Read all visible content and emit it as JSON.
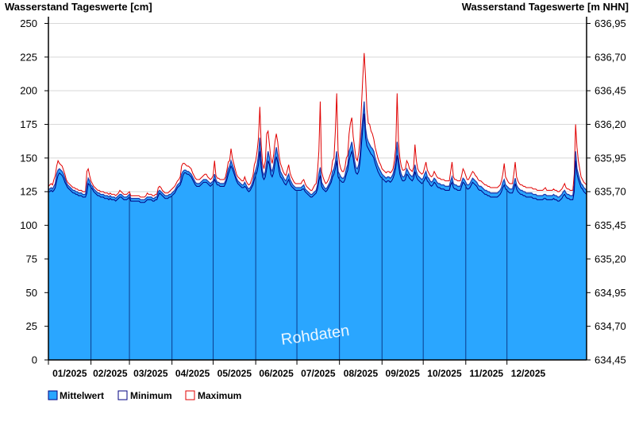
{
  "chart_data": {
    "type": "area",
    "title_left": "Wasserstand Tageswerte [cm]",
    "title_right": "Wasserstand Tageswerte [m NHN]",
    "watermark": "Rohdaten",
    "y_left": {
      "ylim": [
        0,
        255
      ],
      "ticks": [
        0,
        25,
        50,
        75,
        100,
        125,
        150,
        175,
        200,
        225,
        250
      ]
    },
    "y_right": {
      "ylim": [
        634.45,
        637.0
      ],
      "ticks": [
        "634,45",
        "634,70",
        "634,95",
        "635,20",
        "635,45",
        "635,70",
        "635,95",
        "636,20",
        "636,45",
        "636,70",
        "636,95"
      ]
    },
    "months": [
      "01/2025",
      "02/2025",
      "03/2025",
      "04/2025",
      "05/2025",
      "06/2025",
      "07/2025",
      "08/2025",
      "09/2025",
      "10/2025",
      "11/2025",
      "12/2025"
    ],
    "grid": true,
    "legend_position": "bottom-left",
    "series": [
      {
        "name": "Mittelwert",
        "color": "#2aa6ff",
        "values": [
          127,
          127,
          128,
          127,
          129,
          131,
          138,
          141,
          142,
          141,
          140,
          138,
          135,
          132,
          130,
          129,
          128,
          127,
          126,
          126,
          125,
          125,
          124,
          124,
          124,
          123,
          123,
          123,
          130,
          135,
          133,
          130,
          129,
          127,
          126,
          125,
          124,
          124,
          123,
          123,
          123,
          122,
          122,
          122,
          121,
          122,
          121,
          121,
          121,
          120,
          121,
          122,
          123,
          123,
          122,
          121,
          121,
          121,
          122,
          123,
          120,
          120,
          120,
          120,
          120,
          120,
          120,
          119,
          119,
          119,
          119,
          120,
          121,
          121,
          121,
          121,
          120,
          120,
          121,
          121,
          125,
          126,
          125,
          124,
          123,
          122,
          122,
          122,
          123,
          123,
          124,
          125,
          126,
          128,
          130,
          131,
          132,
          138,
          140,
          141,
          141,
          140,
          140,
          139,
          138,
          136,
          134,
          132,
          131,
          131,
          131,
          132,
          133,
          134,
          134,
          134,
          133,
          132,
          131,
          132,
          133,
          138,
          134,
          132,
          132,
          131,
          131,
          131,
          131,
          133,
          137,
          142,
          144,
          148,
          145,
          142,
          138,
          135,
          133,
          132,
          131,
          130,
          130,
          132,
          130,
          128,
          127,
          128,
          130,
          133,
          138,
          141,
          145,
          152,
          165,
          148,
          140,
          137,
          140,
          148,
          155,
          150,
          142,
          140,
          144,
          152,
          158,
          152,
          145,
          140,
          138,
          136,
          134,
          133,
          136,
          138,
          134,
          132,
          130,
          129,
          128,
          128,
          128,
          128,
          128,
          129,
          130,
          127,
          126,
          125,
          124,
          123,
          123,
          124,
          125,
          126,
          130,
          138,
          143,
          132,
          130,
          128,
          127,
          128,
          130,
          132,
          135,
          140,
          142,
          147,
          155,
          140,
          138,
          136,
          135,
          135,
          137,
          142,
          145,
          155,
          158,
          162,
          155,
          148,
          143,
          142,
          145,
          152,
          168,
          180,
          192,
          172,
          165,
          162,
          160,
          158,
          157,
          155,
          150,
          147,
          144,
          142,
          140,
          138,
          137,
          136,
          135,
          136,
          136,
          135,
          136,
          138,
          142,
          148,
          162,
          150,
          142,
          138,
          136,
          136,
          138,
          142,
          140,
          138,
          137,
          136,
          138,
          145,
          140,
          137,
          136,
          135,
          134,
          135,
          138,
          140,
          136,
          135,
          133,
          132,
          133,
          135,
          134,
          132,
          131,
          131,
          130,
          130,
          130,
          129,
          129,
          129,
          129,
          133,
          136,
          131,
          130,
          130,
          129,
          129,
          129,
          132,
          135,
          134,
          132,
          130,
          130,
          131,
          133,
          135,
          134,
          133,
          132,
          130,
          129,
          129,
          128,
          127,
          126,
          126,
          125,
          125,
          124,
          124,
          124,
          124,
          124,
          124,
          125,
          126,
          128,
          132,
          134,
          130,
          129,
          128,
          127,
          127,
          127,
          131,
          135,
          130,
          128,
          127,
          126,
          126,
          125,
          125,
          124,
          124,
          124,
          124,
          124,
          123,
          123,
          123,
          122,
          122,
          122,
          122,
          122,
          123,
          123,
          122,
          122,
          122,
          122,
          122,
          123,
          122,
          122,
          121,
          121,
          122,
          123,
          125,
          126,
          124,
          123,
          123,
          122,
          122,
          122,
          130,
          155,
          142,
          138,
          134,
          131,
          130,
          128,
          127,
          126
        ]
      },
      {
        "name": "Minimum",
        "color": "#000080",
        "values": [
          125,
          125,
          126,
          125,
          126,
          128,
          133,
          137,
          139,
          138,
          137,
          135,
          132,
          130,
          128,
          127,
          126,
          125,
          124,
          124,
          123,
          123,
          122,
          122,
          122,
          121,
          121,
          121,
          124,
          131,
          130,
          128,
          127,
          125,
          124,
          123,
          122,
          122,
          121,
          121,
          121,
          120,
          120,
          120,
          119,
          120,
          119,
          119,
          119,
          118,
          119,
          120,
          121,
          121,
          120,
          119,
          119,
          119,
          120,
          121,
          118,
          118,
          118,
          118,
          118,
          118,
          118,
          117,
          117,
          117,
          117,
          118,
          119,
          119,
          119,
          119,
          118,
          118,
          119,
          119,
          122,
          124,
          123,
          122,
          121,
          120,
          120,
          120,
          121,
          121,
          122,
          123,
          124,
          126,
          128,
          129,
          130,
          133,
          137,
          139,
          139,
          138,
          138,
          137,
          136,
          134,
          132,
          130,
          129,
          129,
          129,
          130,
          131,
          132,
          132,
          132,
          131,
          130,
          129,
          130,
          131,
          134,
          132,
          130,
          130,
          129,
          129,
          129,
          129,
          131,
          134,
          138,
          141,
          144,
          142,
          139,
          136,
          133,
          131,
          130,
          129,
          128,
          128,
          129,
          128,
          126,
          125,
          126,
          128,
          130,
          134,
          137,
          140,
          145,
          155,
          143,
          136,
          134,
          136,
          142,
          148,
          145,
          138,
          136,
          139,
          146,
          151,
          147,
          140,
          136,
          135,
          133,
          131,
          130,
          132,
          134,
          131,
          129,
          128,
          127,
          126,
          126,
          126,
          126,
          126,
          127,
          127,
          125,
          124,
          123,
          122,
          121,
          121,
          122,
          123,
          124,
          127,
          133,
          137,
          129,
          127,
          126,
          125,
          126,
          128,
          130,
          132,
          136,
          138,
          142,
          148,
          136,
          134,
          133,
          132,
          132,
          134,
          138,
          141,
          148,
          152,
          155,
          150,
          143,
          139,
          138,
          140,
          147,
          160,
          172,
          183,
          165,
          159,
          157,
          155,
          153,
          152,
          150,
          146,
          143,
          140,
          138,
          136,
          135,
          134,
          133,
          132,
          133,
          133,
          132,
          133,
          135,
          138,
          143,
          152,
          145,
          138,
          135,
          133,
          133,
          134,
          138,
          137,
          135,
          134,
          133,
          135,
          140,
          136,
          134,
          133,
          132,
          131,
          132,
          134,
          136,
          133,
          132,
          130,
          129,
          130,
          132,
          131,
          129,
          128,
          128,
          127,
          127,
          127,
          126,
          126,
          126,
          126,
          130,
          132,
          128,
          127,
          127,
          126,
          126,
          126,
          129,
          132,
          131,
          129,
          127,
          127,
          128,
          130,
          132,
          131,
          130,
          129,
          127,
          126,
          126,
          125,
          124,
          123,
          123,
          122,
          122,
          121,
          121,
          121,
          121,
          121,
          121,
          122,
          123,
          125,
          128,
          130,
          127,
          126,
          125,
          124,
          124,
          124,
          127,
          131,
          127,
          125,
          124,
          123,
          123,
          122,
          122,
          121,
          121,
          121,
          121,
          121,
          120,
          120,
          120,
          119,
          119,
          119,
          119,
          119,
          120,
          120,
          119,
          119,
          119,
          119,
          119,
          120,
          119,
          119,
          118,
          118,
          119,
          120,
          122,
          123,
          121,
          120,
          120,
          119,
          119,
          119,
          125,
          148,
          138,
          134,
          131,
          128,
          127,
          125,
          124,
          123
        ]
      },
      {
        "name": "Maximum",
        "color": "#e00000",
        "values": [
          129,
          130,
          131,
          130,
          134,
          137,
          144,
          148,
          146,
          145,
          144,
          141,
          138,
          134,
          132,
          131,
          130,
          129,
          128,
          128,
          127,
          127,
          126,
          126,
          126,
          125,
          125,
          125,
          140,
          142,
          137,
          133,
          131,
          129,
          128,
          127,
          126,
          126,
          125,
          125,
          125,
          124,
          124,
          124,
          123,
          124,
          123,
          123,
          123,
          122,
          123,
          124,
          126,
          125,
          124,
          123,
          123,
          123,
          124,
          125,
          122,
          122,
          122,
          122,
          122,
          122,
          122,
          121,
          121,
          121,
          121,
          122,
          124,
          123,
          123,
          123,
          122,
          122,
          123,
          123,
          128,
          129,
          128,
          126,
          125,
          124,
          124,
          124,
          125,
          126,
          127,
          128,
          129,
          131,
          133,
          134,
          136,
          144,
          146,
          146,
          145,
          144,
          144,
          143,
          142,
          139,
          137,
          135,
          134,
          134,
          134,
          135,
          136,
          137,
          138,
          138,
          136,
          135,
          134,
          135,
          137,
          148,
          137,
          135,
          135,
          134,
          134,
          134,
          134,
          136,
          141,
          147,
          148,
          157,
          150,
          146,
          142,
          138,
          136,
          135,
          134,
          133,
          133,
          136,
          133,
          131,
          130,
          131,
          134,
          137,
          145,
          148,
          155,
          165,
          188,
          160,
          146,
          142,
          148,
          168,
          170,
          160,
          150,
          146,
          152,
          162,
          168,
          162,
          152,
          146,
          143,
          140,
          138,
          137,
          141,
          145,
          139,
          136,
          134,
          132,
          131,
          131,
          131,
          131,
          131,
          133,
          134,
          131,
          129,
          128,
          127,
          126,
          126,
          128,
          130,
          131,
          140,
          155,
          192,
          140,
          136,
          133,
          131,
          132,
          134,
          137,
          140,
          148,
          150,
          170,
          198,
          155,
          146,
          142,
          140,
          140,
          143,
          150,
          152,
          168,
          176,
          180,
          166,
          158,
          150,
          148,
          154,
          165,
          188,
          210,
          228,
          210,
          186,
          176,
          175,
          170,
          168,
          164,
          158,
          154,
          150,
          147,
          145,
          142,
          141,
          140,
          139,
          140,
          140,
          139,
          140,
          142,
          148,
          158,
          198,
          162,
          150,
          144,
          141,
          141,
          142,
          148,
          146,
          142,
          141,
          140,
          143,
          160,
          148,
          142,
          140,
          139,
          138,
          139,
          143,
          147,
          141,
          139,
          137,
          136,
          137,
          140,
          138,
          136,
          135,
          135,
          134,
          134,
          134,
          133,
          133,
          133,
          133,
          140,
          147,
          136,
          134,
          134,
          133,
          133,
          133,
          137,
          142,
          140,
          137,
          134,
          134,
          136,
          138,
          140,
          139,
          137,
          136,
          134,
          133,
          133,
          132,
          131,
          130,
          130,
          129,
          129,
          128,
          128,
          128,
          128,
          128,
          128,
          129,
          130,
          133,
          138,
          146,
          136,
          134,
          132,
          131,
          131,
          131,
          138,
          147,
          136,
          133,
          131,
          130,
          130,
          129,
          129,
          128,
          128,
          128,
          128,
          128,
          127,
          127,
          127,
          126,
          126,
          126,
          126,
          126,
          127,
          128,
          126,
          126,
          126,
          126,
          126,
          127,
          126,
          126,
          125,
          125,
          126,
          127,
          129,
          131,
          128,
          127,
          127,
          126,
          126,
          126,
          138,
          175,
          158,
          148,
          142,
          136,
          134,
          132,
          131,
          130
        ]
      }
    ]
  }
}
